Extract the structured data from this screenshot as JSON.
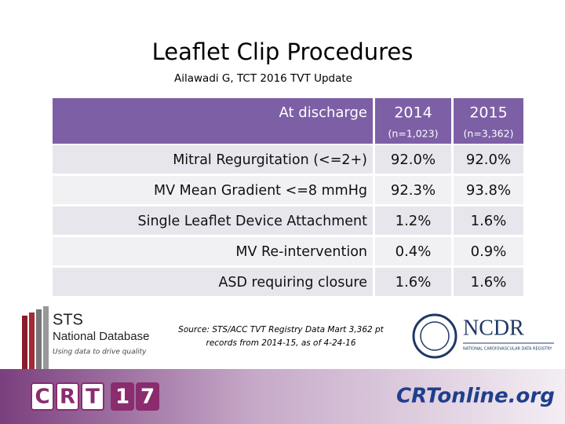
{
  "slide": {
    "title": "Leaflet Clip Procedures",
    "subtitle": "Ailawadi G, TCT 2016 TVT Update",
    "table": {
      "header": {
        "label": "At discharge",
        "columns": [
          {
            "year": "2014",
            "n": "(n=1,023)"
          },
          {
            "year": "2015",
            "n": "(n=3,362)"
          }
        ]
      },
      "rows": [
        [
          "Mitral Regurgitation (<=2+)",
          "92.0%",
          "92.0%"
        ],
        [
          "MV Mean Gradient <=8 mmHg",
          "92.3%",
          "93.8%"
        ],
        [
          "Single Leaflet Device Attachment",
          "1.2%",
          "1.6%"
        ],
        [
          "MV Re-intervention",
          "0.4%",
          "0.9%"
        ],
        [
          "ASD requiring closure",
          "1.6%",
          "1.6%"
        ]
      ]
    },
    "source": [
      "Source: STS/ACC TVT Registry Data Mart 3,362 pt",
      "records from 2014-15, as of 4-24-16"
    ],
    "logos": {
      "sts": [
        "STS",
        "National Database",
        "Using data to drive quality"
      ],
      "ncdr": [
        "NCDR",
        "NATIONAL CARDIOVASCULAR DATA REGISTRY"
      ],
      "crt": [
        "C",
        "R",
        "T",
        "1",
        "7"
      ],
      "crtonline": [
        "CRTonline.org"
      ]
    }
  }
}
